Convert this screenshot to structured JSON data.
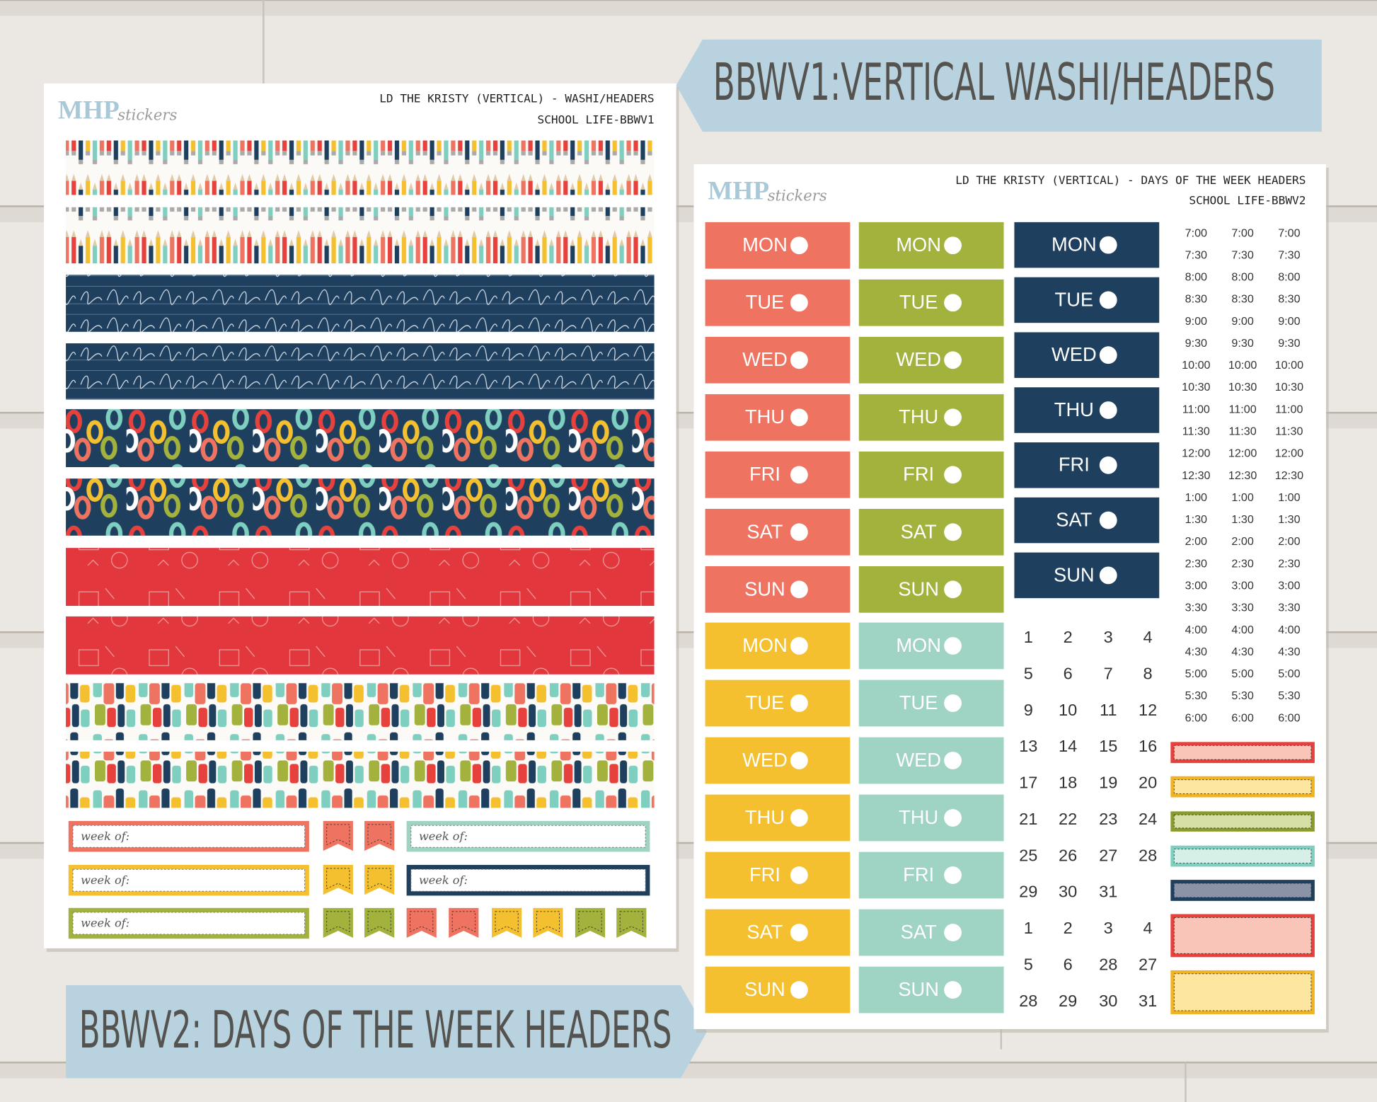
{
  "banners": {
    "top": "BBWV1:VERTICAL WASHI/HEADERS",
    "bottom": "BBWV2: DAYS OF THE WEEK HEADERS"
  },
  "sheet1": {
    "logo": {
      "brand": "MHP",
      "sub": "stickers"
    },
    "title": "LD THE KRISTY (VERTICAL) - WASHI/HEADERS",
    "subtitle": "SCHOOL LIFE-BBWV1",
    "week_of_labels": [
      "week of:",
      "week of:",
      "week of:",
      "week of:",
      "week of:"
    ]
  },
  "sheet2": {
    "logo": {
      "brand": "MHP",
      "sub": "stickers"
    },
    "title": "LD THE KRISTY (VERTICAL) - DAYS OF THE WEEK HEADERS",
    "subtitle": "SCHOOL LIFE-BBWV2",
    "day_columns": [
      [
        "MON",
        "TUE",
        "WED",
        "THU",
        "FRI",
        "SAT",
        "SUN"
      ],
      [
        "MON",
        "TUE",
        "WED",
        "THU",
        "FRI",
        "SAT",
        "SUN"
      ],
      [
        "MON",
        "TUE",
        "WED",
        "THU",
        "FRI",
        "SAT",
        "SUN"
      ],
      [
        "MON",
        "TUE",
        "WED",
        "THU",
        "FRI",
        "SAT",
        "SUN"
      ],
      [
        "MON",
        "TUE",
        "WED",
        "THU",
        "FRI",
        "SAT",
        "SUN"
      ]
    ],
    "time_columns": [
      [
        "7:00",
        "7:30",
        "8:00",
        "8:30",
        "9:00",
        "9:30",
        "10:00",
        "10:30",
        "11:00",
        "11:30",
        "12:00",
        "12:30",
        "1:00",
        "1:30",
        "2:00",
        "2:30",
        "3:00",
        "3:30",
        "4:00",
        "4:30",
        "5:00",
        "5:30",
        "6:00"
      ],
      [
        "7:00",
        "7:30",
        "8:00",
        "8:30",
        "9:00",
        "9:30",
        "10:00",
        "10:30",
        "11:00",
        "11:30",
        "12:00",
        "12:30",
        "1:00",
        "1:30",
        "2:00",
        "2:30",
        "3:00",
        "3:30",
        "4:00",
        "4:30",
        "5:00",
        "5:30",
        "6:00"
      ],
      [
        "7:00",
        "7:30",
        "8:00",
        "8:30",
        "9:00",
        "9:30",
        "10:00",
        "10:30",
        "11:00",
        "11:30",
        "12:00",
        "12:30",
        "1:00",
        "1:30",
        "2:00",
        "2:30",
        "3:00",
        "3:30",
        "4:00",
        "4:30",
        "5:00",
        "5:30",
        "6:00"
      ]
    ],
    "calendar_numbers": [
      1,
      2,
      3,
      4,
      5,
      6,
      7,
      8,
      9,
      10,
      11,
      12,
      13,
      14,
      15,
      16,
      17,
      18,
      19,
      20,
      21,
      22,
      23,
      24,
      25,
      26,
      27,
      28,
      29,
      30,
      31,
      1,
      2,
      3,
      4,
      5,
      6,
      28,
      27,
      28,
      29,
      30,
      31
    ]
  }
}
